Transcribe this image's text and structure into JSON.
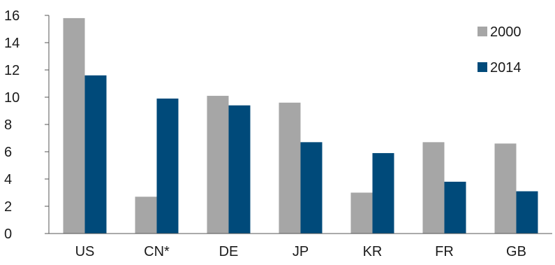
{
  "chart_data": {
    "type": "bar",
    "title": "",
    "xlabel": "",
    "ylabel": "",
    "categories": [
      "US",
      "CN*",
      "DE",
      "JP",
      "KR",
      "FR",
      "GB"
    ],
    "series": [
      {
        "name": "2000",
        "values": [
          15.8,
          2.7,
          10.1,
          9.6,
          3.0,
          6.7,
          6.6
        ],
        "color": "#a6a6a6"
      },
      {
        "name": "2014",
        "values": [
          11.6,
          9.9,
          9.4,
          6.7,
          5.9,
          3.8,
          3.1
        ],
        "color": "#004a7a"
      }
    ],
    "ylim": [
      0,
      16
    ],
    "yticks": [
      "0",
      "2",
      "4",
      "6",
      "8",
      "10",
      "12",
      "14",
      "16"
    ],
    "grid": false,
    "legend_position": "top-right"
  }
}
